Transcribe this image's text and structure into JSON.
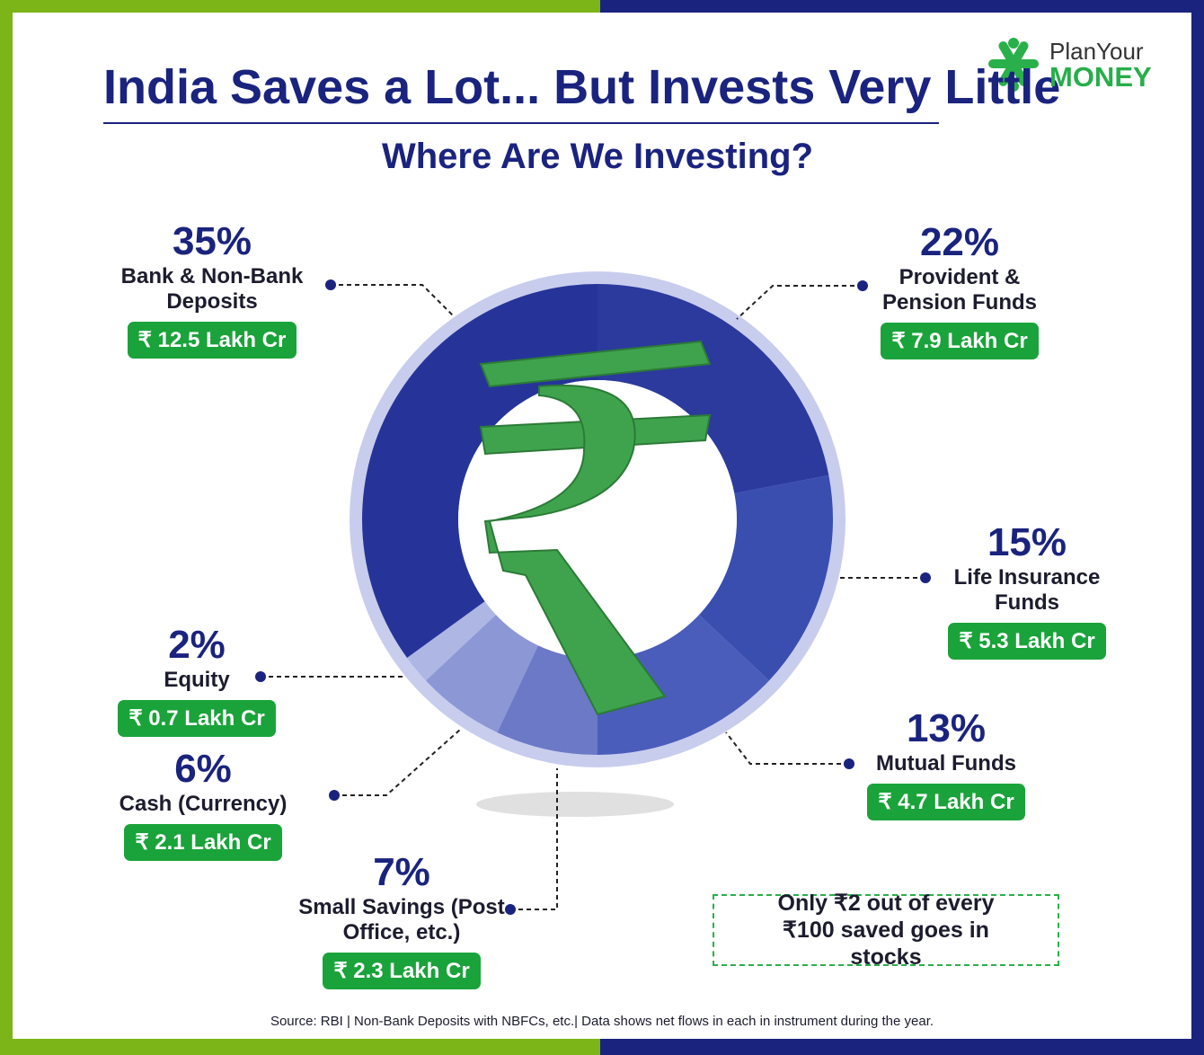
{
  "chart_data": {
    "type": "donut",
    "title": "India Saves a Lot... But Invests Very Little",
    "subtitle": "Where Are We Investing?",
    "categories": [
      "Provident & Pension Funds",
      "Life Insurance Funds",
      "Mutual Funds",
      "Small Savings (Post Office, etc.)",
      "Cash (Currency)",
      "Equity",
      "Bank & Non-Bank Deposits"
    ],
    "values": [
      22,
      15,
      13,
      7,
      6,
      2,
      35
    ],
    "value_labels": [
      "22%",
      "15%",
      "13%",
      "7%",
      "6%",
      "2%",
      "35%"
    ],
    "amounts": [
      "₹ 7.9 Lakh Cr",
      "₹ 5.3 Lakh Cr",
      "₹ 4.7 Lakh Cr",
      "₹ 2.3 Lakh Cr",
      "₹ 2.1 Lakh Cr",
      "₹ 0.7 Lakh Cr",
      "₹ 12.5 Lakh Cr"
    ],
    "colors": [
      "#2b3a9c",
      "#3a4eb0",
      "#4b5dba",
      "#6b79c7",
      "#8c97d5",
      "#aeb6e4",
      "#26349a"
    ]
  },
  "logo": {
    "line1": "PlanYour",
    "line2": "MONEY"
  },
  "callout": "Only ₹2 out of every ₹100 saved goes in stocks",
  "source": "Source: RBI | Non-Bank Deposits with NBFCs, etc.| Data shows net flows in each in instrument during the year."
}
